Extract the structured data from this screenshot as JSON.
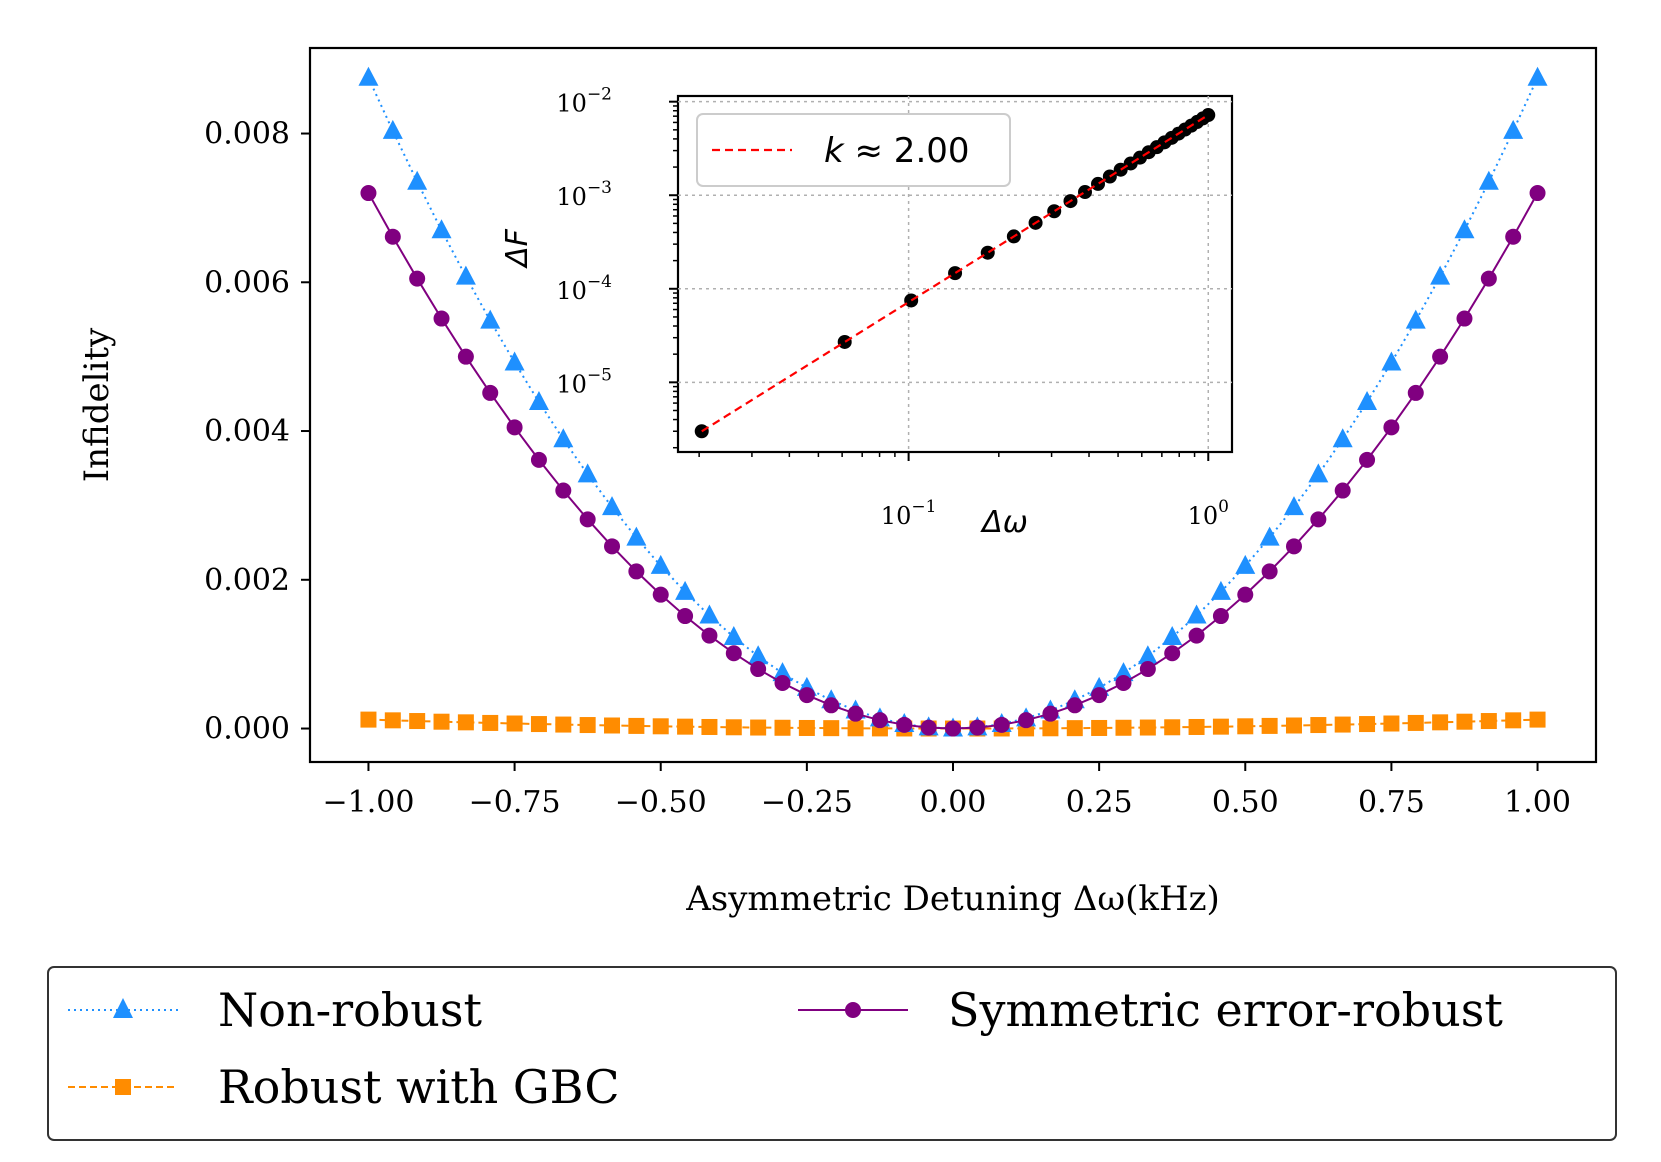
{
  "chart_data": [
    {
      "type": "line",
      "xlabel": "Asymmetric Detuning Δω(kHz)",
      "ylabel": "Infidelity",
      "xlim": [
        -1.1,
        1.1
      ],
      "ylim": [
        -0.00045,
        0.00915
      ],
      "xticks": [
        -1.0,
        -0.75,
        -0.5,
        -0.25,
        0.0,
        0.25,
        0.5,
        0.75,
        1.0
      ],
      "xtick_labels": [
        "−1.00",
        "−0.75",
        "−0.50",
        "−0.25",
        "0.00",
        "0.25",
        "0.50",
        "0.75",
        "1.00"
      ],
      "yticks": [
        0.0,
        0.002,
        0.004,
        0.006,
        0.008
      ],
      "ytick_labels": [
        "0.000",
        "0.002",
        "0.004",
        "0.006",
        "0.008"
      ],
      "x_range": {
        "start": -1.0,
        "stop": 1.0,
        "count": 49
      },
      "series": [
        {
          "name": "Non-robust",
          "color": "#1e90ff",
          "marker": "triangle",
          "linestyle": "dotted",
          "model": "quadratic",
          "coef": 0.00875,
          "offset": 0
        },
        {
          "name": "Robust with GBC",
          "color": "#ff8c00",
          "marker": "square",
          "linestyle": "dashed",
          "model": "quadratic",
          "coef": 0.00012,
          "offset": 0
        },
        {
          "name": "Symmetric error-robust",
          "color": "#800080",
          "marker": "circle",
          "linestyle": "solid",
          "model": "quadratic",
          "coef": 0.0072,
          "offset": 0
        }
      ],
      "legend": {
        "placement": "below",
        "columns": 2,
        "entries": [
          "Non-robust",
          "Robust with GBC",
          "Symmetric error-robust"
        ]
      }
    },
    {
      "type": "scatter",
      "role": "inset",
      "xscale": "log",
      "yscale": "log",
      "xlabel": "Δω",
      "ylabel": "ΔF",
      "xlim": [
        0.017,
        1.2
      ],
      "ylim": [
        1.8e-06,
        0.0115
      ],
      "xticks": [
        {
          "value": 0.1,
          "base": "10",
          "exp": "−1"
        },
        {
          "value": 1.0,
          "base": "10",
          "exp": "0"
        }
      ],
      "yticks": [
        {
          "value": 1e-05,
          "base": "10",
          "exp": "−5"
        },
        {
          "value": 0.0001,
          "base": "10",
          "exp": "−4"
        },
        {
          "value": 0.001,
          "base": "10",
          "exp": "−3"
        },
        {
          "value": 0.01,
          "base": "10",
          "exp": "−2"
        }
      ],
      "grid": true,
      "points": {
        "color": "#000000",
        "x": [
          0.0204,
          0.0612,
          0.102,
          0.1429,
          0.1837,
          0.2245,
          0.2653,
          0.3061,
          0.3469,
          0.3878,
          0.4286,
          0.4694,
          0.5102,
          0.551,
          0.5918,
          0.6327,
          0.6735,
          0.7143,
          0.7551,
          0.7959,
          0.8367,
          0.8776,
          0.9184,
          0.9592,
          1.0
        ],
        "y": [
          3e-06,
          2.7e-05,
          7.5e-05,
          0.000147,
          0.000243,
          0.000363,
          0.000507,
          0.000674,
          0.000866,
          0.001082,
          0.001322,
          0.001586,
          0.001874,
          0.002186,
          0.002522,
          0.002882,
          0.003266,
          0.003674,
          0.004106,
          0.004562,
          0.005042,
          0.005546,
          0.006074,
          0.006626,
          0.0072
        ]
      },
      "fit": {
        "color": "#ff0000",
        "linestyle": "dashed",
        "slope": 2.0,
        "coef": 0.0072,
        "x_from": 0.0204,
        "x_to": 1.0
      },
      "legend": {
        "placement": "top-left",
        "entries": [
          {
            "prefix": "k",
            "text": " ≈ 2.00"
          }
        ]
      }
    }
  ]
}
